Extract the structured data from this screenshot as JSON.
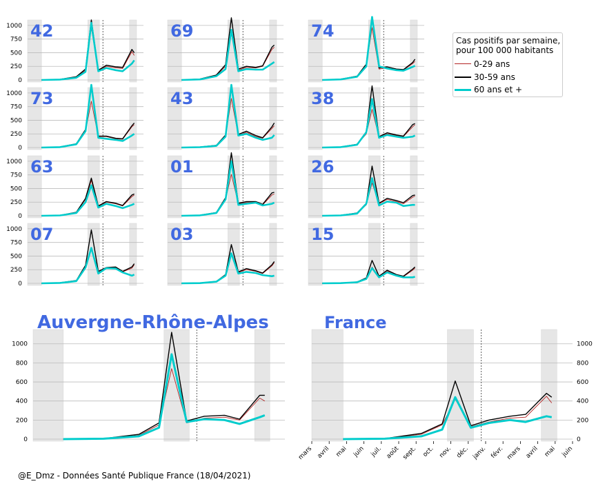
{
  "colors": {
    "young": "#b22222",
    "middle": "#000000",
    "senior": "#00cccc",
    "label": "#4169e1",
    "shade": "#e6e6e6",
    "grid": "#bbbbbb"
  },
  "legend": {
    "title_line1": "Cas positifs par semaine,",
    "title_line2": "pour 100 000 habitants",
    "items": [
      "0-29 ans",
      "30-59 ans",
      "60 ans et +"
    ]
  },
  "credit": "@E_Dmz - Données Santé Publique France (18/04/2021)",
  "chart_data": [
    {
      "type": "line",
      "title": "42",
      "ylim": [
        0,
        1100
      ],
      "yticks": [
        0,
        250,
        500,
        750,
        1000
      ],
      "series": [
        {
          "name": "0-29 ans",
          "values": [
            0,
            10,
            50,
            180,
            960,
            170,
            250,
            220,
            210,
            520,
            450
          ]
        },
        {
          "name": "30-59 ans",
          "values": [
            0,
            12,
            60,
            200,
            1100,
            180,
            270,
            240,
            230,
            560,
            500
          ]
        },
        {
          "name": "60 ans et +",
          "values": [
            0,
            8,
            40,
            150,
            1050,
            160,
            220,
            180,
            160,
            300,
            360
          ]
        }
      ]
    },
    {
      "type": "line",
      "title": "69",
      "ylim": [
        0,
        1100
      ],
      "yticks": [
        0,
        250,
        500,
        750,
        1000
      ],
      "series": [
        {
          "name": "0-29 ans",
          "values": [
            0,
            15,
            80,
            250,
            860,
            180,
            230,
            220,
            250,
            560,
            600
          ]
        },
        {
          "name": "30-59 ans",
          "values": [
            0,
            18,
            90,
            280,
            1140,
            200,
            250,
            230,
            260,
            600,
            640
          ]
        },
        {
          "name": "60 ans et +",
          "values": [
            0,
            10,
            70,
            200,
            920,
            160,
            200,
            190,
            190,
            300,
            330
          ]
        }
      ]
    },
    {
      "type": "line",
      "title": "74",
      "ylim": [
        0,
        1100
      ],
      "yticks": [
        0,
        250,
        500,
        750,
        1000
      ],
      "series": [
        {
          "name": "0-29 ans",
          "values": [
            0,
            12,
            60,
            260,
            960,
            200,
            220,
            190,
            180,
            300,
            340
          ]
        },
        {
          "name": "30-59 ans",
          "values": [
            0,
            15,
            70,
            290,
            1200,
            220,
            240,
            200,
            190,
            320,
            380
          ]
        },
        {
          "name": "60 ans et +",
          "values": [
            0,
            10,
            60,
            250,
            1200,
            250,
            210,
            180,
            170,
            240,
            260
          ]
        }
      ]
    },
    {
      "type": "line",
      "title": "73",
      "ylim": [
        0,
        1100
      ],
      "yticks": [
        0,
        250,
        500,
        750,
        1000
      ],
      "series": [
        {
          "name": "0-29 ans",
          "values": [
            0,
            10,
            60,
            300,
            850,
            200,
            200,
            160,
            150,
            380,
            420
          ]
        },
        {
          "name": "30-59 ans",
          "values": [
            0,
            12,
            70,
            330,
            1120,
            210,
            210,
            170,
            160,
            400,
            450
          ]
        },
        {
          "name": "60 ans et +",
          "values": [
            0,
            8,
            60,
            300,
            1150,
            180,
            160,
            140,
            120,
            220,
            250
          ]
        }
      ]
    },
    {
      "type": "line",
      "title": "43",
      "ylim": [
        0,
        1100
      ],
      "yticks": [
        0,
        250,
        500,
        750,
        1000
      ],
      "series": [
        {
          "name": "0-29 ans",
          "values": [
            0,
            8,
            30,
            200,
            900,
            220,
            280,
            200,
            170,
            350,
            400
          ]
        },
        {
          "name": "30-59 ans",
          "values": [
            0,
            10,
            40,
            230,
            1100,
            240,
            300,
            220,
            180,
            380,
            450
          ]
        },
        {
          "name": "60 ans et +",
          "values": [
            0,
            6,
            30,
            200,
            1150,
            220,
            250,
            180,
            140,
            180,
            230
          ]
        }
      ]
    },
    {
      "type": "line",
      "title": "38",
      "ylim": [
        0,
        1100
      ],
      "yticks": [
        0,
        250,
        500,
        750,
        1000
      ],
      "series": [
        {
          "name": "0-29 ans",
          "values": [
            0,
            10,
            50,
            250,
            700,
            190,
            250,
            220,
            200,
            380,
            420
          ]
        },
        {
          "name": "30-59 ans",
          "values": [
            0,
            12,
            60,
            290,
            1130,
            200,
            270,
            230,
            210,
            420,
            440
          ]
        },
        {
          "name": "60 ans et +",
          "values": [
            0,
            8,
            50,
            280,
            890,
            180,
            230,
            200,
            180,
            200,
            220
          ]
        }
      ]
    },
    {
      "type": "line",
      "title": "63",
      "ylim": [
        0,
        1100
      ],
      "yticks": [
        0,
        250,
        500,
        750,
        1000
      ],
      "series": [
        {
          "name": "0-29 ans",
          "values": [
            0,
            8,
            60,
            300,
            650,
            170,
            250,
            220,
            180,
            350,
            380
          ]
        },
        {
          "name": "30-59 ans",
          "values": [
            0,
            9,
            65,
            320,
            690,
            180,
            260,
            230,
            190,
            380,
            400
          ]
        },
        {
          "name": "60 ans et +",
          "values": [
            0,
            6,
            50,
            250,
            560,
            150,
            220,
            180,
            140,
            200,
            220
          ]
        }
      ]
    },
    {
      "type": "line",
      "title": "01",
      "ylim": [
        0,
        1100
      ],
      "yticks": [
        0,
        250,
        500,
        750,
        1000
      ],
      "series": [
        {
          "name": "0-29 ans",
          "values": [
            0,
            10,
            50,
            300,
            760,
            220,
            240,
            250,
            200,
            380,
            400
          ]
        },
        {
          "name": "30-59 ans",
          "values": [
            0,
            12,
            60,
            330,
            1170,
            230,
            260,
            260,
            210,
            420,
            430
          ]
        },
        {
          "name": "60 ans et +",
          "values": [
            0,
            8,
            50,
            300,
            1000,
            200,
            220,
            240,
            190,
            220,
            240
          ]
        }
      ]
    },
    {
      "type": "line",
      "title": "26",
      "ylim": [
        0,
        1100
      ],
      "yticks": [
        0,
        250,
        500,
        750,
        1000
      ],
      "series": [
        {
          "name": "0-29 ans",
          "values": [
            0,
            8,
            40,
            200,
            600,
            220,
            300,
            260,
            220,
            340,
            360
          ]
        },
        {
          "name": "30-59 ans",
          "values": [
            0,
            10,
            50,
            230,
            910,
            230,
            320,
            280,
            240,
            370,
            380
          ]
        },
        {
          "name": "60 ans et +",
          "values": [
            0,
            6,
            40,
            220,
            690,
            190,
            260,
            240,
            180,
            200,
            200
          ]
        }
      ]
    },
    {
      "type": "line",
      "title": "07",
      "ylim": [
        0,
        1100
      ],
      "yticks": [
        0,
        250,
        500,
        750,
        1000
      ],
      "series": [
        {
          "name": "0-29 ans",
          "values": [
            0,
            10,
            40,
            300,
            650,
            200,
            270,
            290,
            210,
            280,
            340
          ]
        },
        {
          "name": "30-59 ans",
          "values": [
            0,
            12,
            50,
            330,
            980,
            220,
            290,
            300,
            220,
            300,
            360
          ]
        },
        {
          "name": "60 ans et +",
          "values": [
            0,
            8,
            40,
            290,
            650,
            180,
            280,
            270,
            200,
            140,
            160
          ]
        }
      ]
    },
    {
      "type": "line",
      "title": "03",
      "ylim": [
        0,
        1100
      ],
      "yticks": [
        0,
        250,
        500,
        750,
        1000
      ],
      "series": [
        {
          "name": "0-29 ans",
          "values": [
            0,
            5,
            30,
            150,
            550,
            200,
            250,
            220,
            180,
            320,
            380
          ]
        },
        {
          "name": "30-59 ans",
          "values": [
            0,
            6,
            35,
            160,
            710,
            210,
            270,
            230,
            190,
            340,
            400
          ]
        },
        {
          "name": "60 ans et +",
          "values": [
            0,
            4,
            30,
            140,
            550,
            180,
            210,
            190,
            150,
            130,
            140
          ]
        }
      ]
    },
    {
      "type": "line",
      "title": "15",
      "ylim": [
        0,
        1100
      ],
      "yticks": [
        0,
        250,
        500,
        750,
        1000
      ],
      "series": [
        {
          "name": "0-29 ans",
          "values": [
            0,
            4,
            20,
            80,
            300,
            120,
            220,
            150,
            120,
            240,
            280
          ]
        },
        {
          "name": "30-59 ans",
          "values": [
            0,
            5,
            25,
            100,
            420,
            130,
            240,
            160,
            130,
            260,
            300
          ]
        },
        {
          "name": "60 ans et +",
          "values": [
            0,
            4,
            20,
            80,
            280,
            110,
            200,
            140,
            110,
            110,
            120
          ]
        }
      ]
    },
    {
      "type": "line",
      "title": "Auvergne-Rhône-Alpes",
      "ylim": [
        0,
        1150
      ],
      "yticks": [
        0,
        200,
        400,
        600,
        800,
        1000
      ],
      "series": [
        {
          "name": "0-29 ans",
          "values": [
            0,
            5,
            40,
            150,
            740,
            170,
            220,
            230,
            200,
            430,
            400
          ]
        },
        {
          "name": "30-59 ans",
          "values": [
            0,
            6,
            50,
            170,
            1120,
            190,
            240,
            250,
            210,
            460,
            460
          ]
        },
        {
          "name": "60 ans et +",
          "values": [
            0,
            4,
            30,
            120,
            890,
            180,
            210,
            200,
            160,
            230,
            250
          ]
        }
      ]
    },
    {
      "type": "line",
      "title": "France",
      "ylim": [
        0,
        1150
      ],
      "yticks": [
        0,
        200,
        400,
        600,
        800,
        1000
      ],
      "xticks": [
        "mars",
        "avril",
        "mai",
        "juin",
        "juil.",
        "août",
        "sept.",
        "oct.",
        "nov.",
        "déc.",
        "janv.",
        "févr.",
        "mars",
        "avril",
        "mai",
        "juin"
      ],
      "series": [
        {
          "name": "0-29 ans",
          "values": [
            0,
            5,
            50,
            150,
            420,
            130,
            180,
            220,
            230,
            450,
            380
          ]
        },
        {
          "name": "30-59 ans",
          "values": [
            0,
            6,
            60,
            160,
            610,
            140,
            200,
            240,
            260,
            480,
            440
          ]
        },
        {
          "name": "60 ans et +",
          "values": [
            0,
            4,
            30,
            100,
            440,
            120,
            170,
            200,
            180,
            240,
            230
          ]
        }
      ]
    }
  ]
}
